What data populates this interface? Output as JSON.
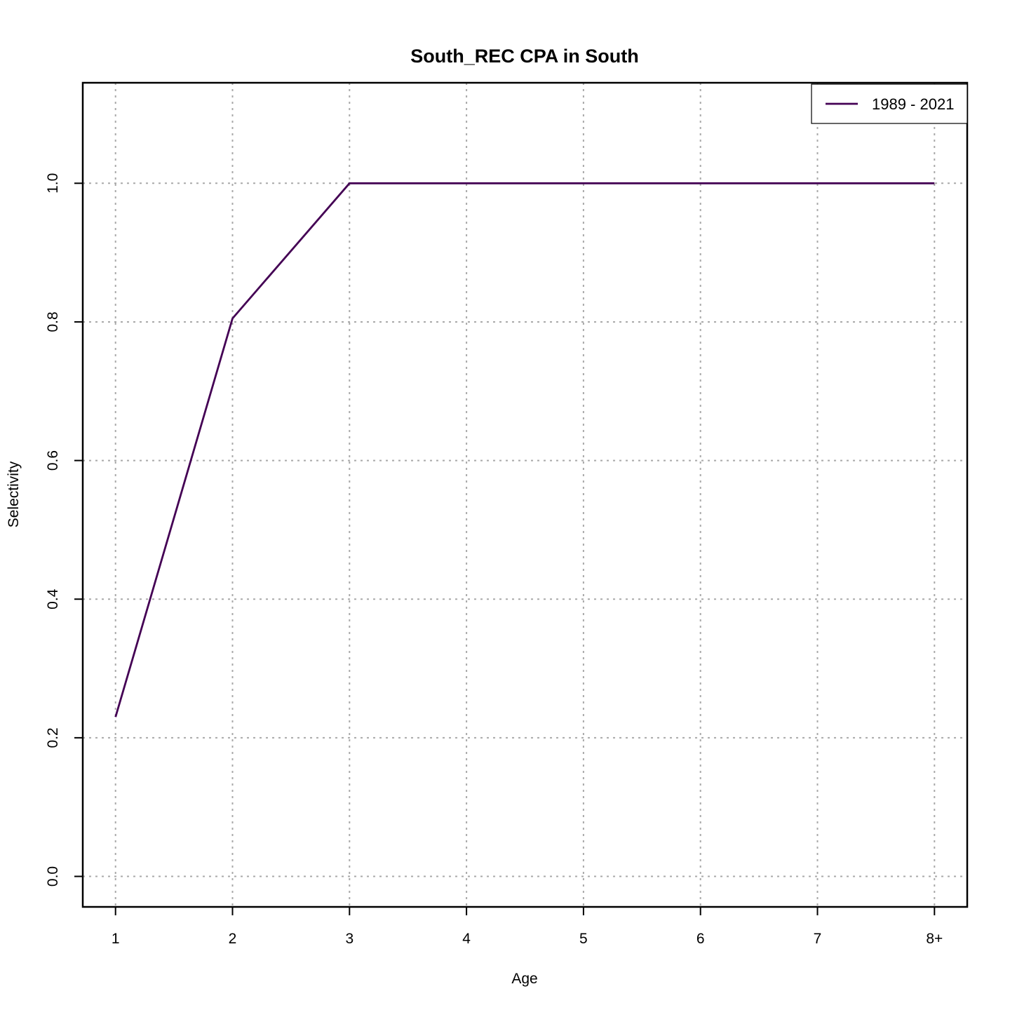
{
  "chart_data": {
    "type": "line",
    "title": "South_REC CPA in South",
    "xlabel": "Age",
    "ylabel": "Selectivity",
    "x_ticks": [
      "1",
      "2",
      "3",
      "4",
      "5",
      "6",
      "7",
      "8+"
    ],
    "y_ticks": [
      "0.0",
      "0.2",
      "0.4",
      "0.6",
      "0.8",
      "1.0"
    ],
    "xlim": [
      0.72,
      8.28
    ],
    "ylim": [
      -0.044,
      1.145
    ],
    "grid": true,
    "legend_position": "top-right",
    "series": [
      {
        "name": "1989 - 2021",
        "color": "#440154",
        "x": [
          1,
          2,
          3,
          4,
          5,
          6,
          7,
          8
        ],
        "values": [
          0.23,
          0.805,
          1.0,
          1.0,
          1.0,
          1.0,
          1.0,
          1.0
        ]
      }
    ]
  }
}
